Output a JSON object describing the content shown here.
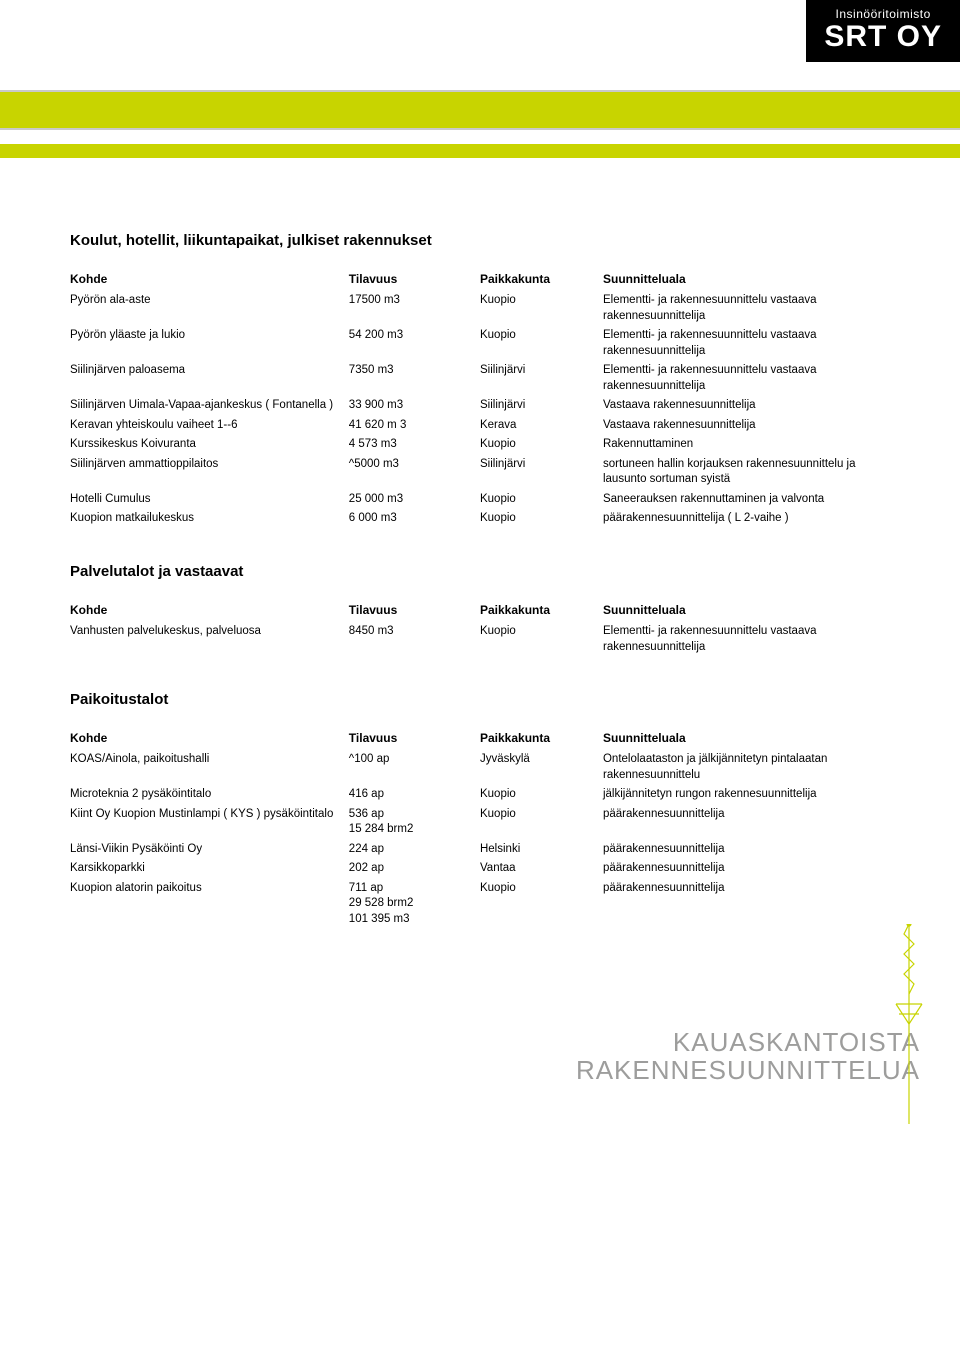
{
  "logo": {
    "small": "Insinööritoimisto",
    "big": "SRT OY"
  },
  "schools": {
    "title": "Koulut, hotellit, liikuntapaikat, julkiset rakennukset",
    "headers": [
      "Kohde",
      "Tilavuus",
      "Paikkakunta",
      "Suunnitteluala"
    ],
    "rows": [
      [
        "Pyörön ala-aste",
        "17500 m3",
        "Kuopio",
        "Elementti- ja rakennesuunnittelu vastaava rakennesuunnittelija"
      ],
      [
        "Pyörön yläaste ja lukio",
        "54 200 m3",
        "Kuopio",
        "Elementti- ja rakennesuunnittelu vastaava rakennesuunnittelija"
      ],
      [
        "Siilinjärven paloasema",
        "7350 m3",
        "Siilinjärvi",
        "Elementti- ja rakennesuunnittelu vastaava rakennesuunnittelija"
      ],
      [
        "Siilinjärven Uimala-Vapaa-ajankeskus ( Fontanella )",
        "33 900 m3",
        "Siilinjärvi",
        "Vastaava rakennesuunnittelija"
      ],
      [
        "Keravan yhteiskoulu vaiheet 1--6",
        "41 620 m 3",
        "Kerava",
        "Vastaava rakennesuunnittelija"
      ],
      [
        "Kurssikeskus Koivuranta",
        "4 573 m3",
        "Kuopio",
        "Rakennuttaminen"
      ],
      [
        "Siilinjärven ammattioppilaitos",
        "^5000 m3",
        "Siilinjärvi",
        "sortuneen hallin korjauksen rakennesuunnittelu ja lausunto sortuman syistä"
      ],
      [
        "Hotelli Cumulus",
        "25 000 m3",
        "Kuopio",
        "Saneerauksen rakennuttaminen ja valvonta"
      ],
      [
        "Kuopion matkailukeskus",
        "6 000 m3",
        "Kuopio",
        "päärakennesuunnittelija ( L 2-vaihe )"
      ]
    ]
  },
  "service": {
    "title": "Palvelutalot ja vastaavat",
    "headers": [
      "Kohde",
      "Tilavuus",
      "Paikkakunta",
      "Suunnitteluala"
    ],
    "rows": [
      [
        "Vanhusten palvelukeskus, palveluosa",
        "8450 m3",
        "Kuopio",
        "Elementti- ja rakennesuunnittelu vastaava rakennesuunnittelija"
      ]
    ]
  },
  "parking": {
    "title": "Paikoitustalot",
    "headers": [
      "Kohde",
      "Tilavuus",
      "Paikkakunta",
      "Suunnitteluala"
    ],
    "rows": [
      [
        "KOAS/Ainola, paikoitushalli",
        "^100 ap",
        "Jyväskylä",
        "Ontelolaataston ja jälkijännitetyn pintalaatan rakennesuunnittelu"
      ],
      [
        "Microteknia 2 pysäköintitalo",
        " 416 ap",
        "Kuopio",
        "jälkijännitetyn rungon rakennesuunnittelija"
      ],
      [
        "Kiint Oy Kuopion Mustinlampi ( KYS ) pysäköintitalo",
        "536 ap\n15 284 brm2",
        "Kuopio",
        "päärakennesuunnittelija"
      ],
      [
        "Länsi-Viikin Pysäköinti Oy",
        "224 ap",
        "Helsinki",
        "päärakennesuunnittelija"
      ],
      [
        "Karsikkoparkki",
        "202 ap",
        "Vantaa",
        "päärakennesuunnittelija"
      ],
      [
        "Kuopion alatorin paikoitus",
        "711 ap\n29 528 brm2\n101 395 m3",
        "Kuopio",
        "päärakennesuunnittelija"
      ]
    ]
  },
  "footer": {
    "line1": "KAUASKANTOISTA",
    "line2": "RAKENNESUUNNITTELUA"
  },
  "colors": {
    "accent": "#c8d400",
    "grey": "#9d9d9c"
  }
}
